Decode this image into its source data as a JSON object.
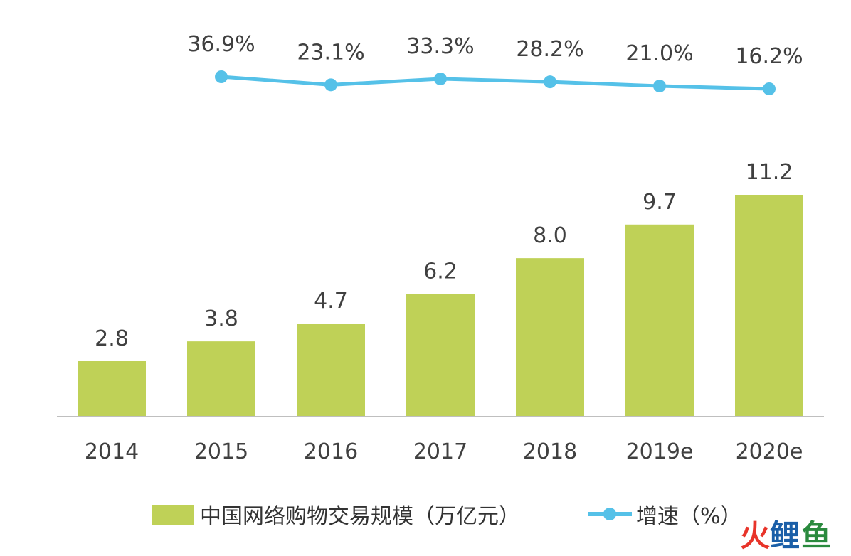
{
  "chart_data": {
    "type": "bar",
    "categories": [
      "2014",
      "2015",
      "2016",
      "2017",
      "2018",
      "2019e",
      "2020e"
    ],
    "series": [
      {
        "name": "中国网络购物交易规模（万亿元）",
        "kind": "bar",
        "values": [
          2.8,
          3.8,
          4.7,
          6.2,
          8.0,
          9.7,
          11.2
        ],
        "labels": [
          "2.8",
          "3.8",
          "4.7",
          "6.2",
          "8.0",
          "9.7",
          "11.2"
        ],
        "color": "#bfd157"
      },
      {
        "name": "增速（%）",
        "kind": "line",
        "values": [
          null,
          36.9,
          23.1,
          33.3,
          28.2,
          21.0,
          16.2
        ],
        "labels": [
          "",
          "36.9%",
          "23.1%",
          "33.3%",
          "28.2%",
          "21.0%",
          "16.2%"
        ],
        "color": "#55c1e8"
      }
    ],
    "ylim": [
      0,
      11.5
    ],
    "legend_position": "bottom",
    "grid": false
  },
  "watermark": {
    "text": "火鲤鱼",
    "colors": [
      "#e8342a",
      "#e8342a",
      "#e8342a"
    ]
  }
}
